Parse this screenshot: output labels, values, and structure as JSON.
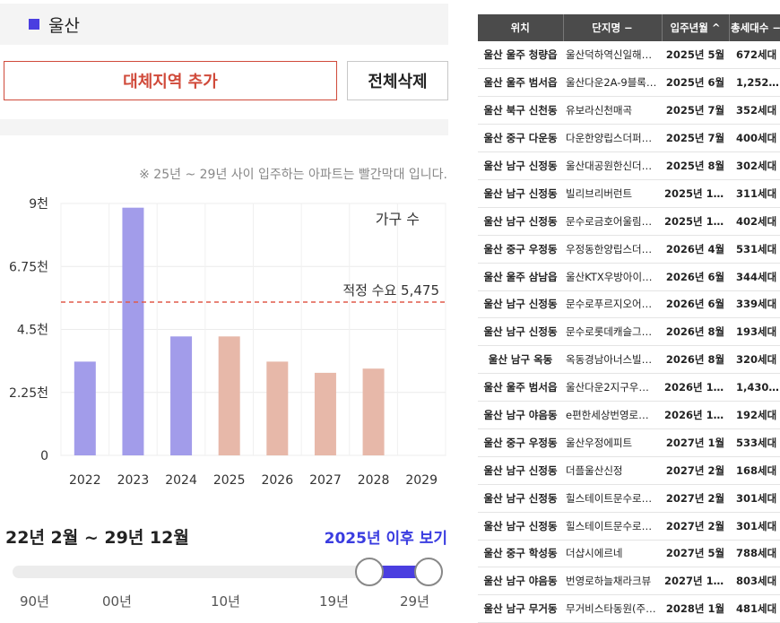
{
  "region": {
    "name": "울산"
  },
  "buttons": {
    "add": "대체지역 추가",
    "clear": "전체삭제"
  },
  "note": "※ 25년 ~ 29년 사이 입주하는 아파트는 빨간막대 입니다.",
  "colors": {
    "past_bar": "#a29cea",
    "future_bar": "#e7b8a9",
    "demand_line": "#e05a4a",
    "accent": "#4a3ee0",
    "add_button": "#d04a3a"
  },
  "chart_data": {
    "type": "bar",
    "categories": [
      "2022",
      "2023",
      "2024",
      "2025",
      "2026",
      "2027",
      "2028",
      "2029"
    ],
    "values": [
      3350,
      8850,
      4250,
      4250,
      3350,
      2950,
      3100,
      0
    ],
    "future_from": "2025",
    "ylim": [
      0,
      9000
    ],
    "yticks": [
      0,
      2250,
      4500,
      6750,
      9000
    ],
    "ytick_labels": [
      "0",
      "2.25천",
      "4.5천",
      "6.75천",
      "9천"
    ],
    "legend": "가구 수",
    "demand": {
      "value": 5475,
      "label": "적정 수요 5,475"
    },
    "grid": true
  },
  "period": {
    "label": "22년 2월 ~ 29년 12월",
    "link": "2025년 이후 보기"
  },
  "slider": {
    "ticks": [
      "90년",
      "00년",
      "10년",
      "19년",
      "29년"
    ],
    "range": [
      "25년",
      "29년"
    ]
  },
  "table": {
    "headers": [
      "위치",
      "단지명 −",
      "입주년월 ^",
      "총세대수 −"
    ],
    "rows": [
      [
        "울산 울주 청량읍",
        "울산덕하역신일해…",
        "2025년 5월",
        "672세대"
      ],
      [
        "울산 울주 범서읍",
        "울산다운2A-9블록…",
        "2025년 6월",
        "1,252세대"
      ],
      [
        "울산 북구 신천동",
        "유보라신천매곡",
        "2025년 7월",
        "352세대"
      ],
      [
        "울산 중구 다운동",
        "다운한양립스더퍼…",
        "2025년 7월",
        "400세대"
      ],
      [
        "울산 남구 신정동",
        "울산대공원한신더…",
        "2025년 8월",
        "302세대"
      ],
      [
        "울산 남구 신정동",
        "빌리브리버런트",
        "2025년 12월",
        "311세대"
      ],
      [
        "울산 남구 신정동",
        "문수로금호어울림…",
        "2025년 12월",
        "402세대"
      ],
      [
        "울산 중구 우정동",
        "우정동한양립스더…",
        "2026년 4월",
        "531세대"
      ],
      [
        "울산 울주 삼남읍",
        "울산KTX우방아이…",
        "2026년 6월",
        "344세대"
      ],
      [
        "울산 남구 신정동",
        "문수로푸르지오어…",
        "2026년 6월",
        "339세대"
      ],
      [
        "울산 남구 신정동",
        "문수로롯데캐슬그…",
        "2026년 8월",
        "193세대"
      ],
      [
        "울산 남구 옥동",
        "옥동경남아너스빌…",
        "2026년 8월",
        "320세대"
      ],
      [
        "울산 울주 범서읍",
        "울산다운2지구우…",
        "2026년 11월",
        "1,430세대"
      ],
      [
        "울산 남구 야음동",
        "e편한세상번영로…",
        "2026년 11월",
        "192세대"
      ],
      [
        "울산 중구 우정동",
        "울산우정에피트",
        "2027년 1월",
        "533세대"
      ],
      [
        "울산 남구 신정동",
        "더플울산신정",
        "2027년 2월",
        "168세대"
      ],
      [
        "울산 남구 신정동",
        "힐스테이트문수로…",
        "2027년 2월",
        "301세대"
      ],
      [
        "울산 남구 신정동",
        "힐스테이트문수로…",
        "2027년 2월",
        "301세대"
      ],
      [
        "울산 중구 학성동",
        "더샵시에르네",
        "2027년 5월",
        "788세대"
      ],
      [
        "울산 남구 야음동",
        "번영로하늘채라크뷰",
        "2027년 11월",
        "803세대"
      ],
      [
        "울산 남구 무거동",
        "무거비스타동원(주…",
        "2028년 1월",
        "481세대"
      ]
    ]
  }
}
